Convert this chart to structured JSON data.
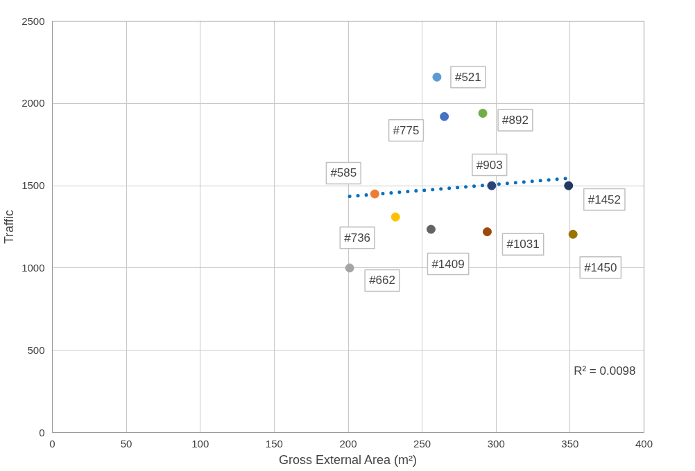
{
  "chart_data": {
    "type": "scatter",
    "xlabel": "Gross External Area (m²)",
    "ylabel": "Traffic",
    "xlim": [
      0,
      400
    ],
    "xticks": [
      0,
      50,
      100,
      150,
      200,
      250,
      300,
      350,
      400
    ],
    "ylim": [
      0,
      2500
    ],
    "yticks": [
      0,
      500,
      1000,
      1500,
      2000,
      2500
    ],
    "grid": true,
    "series": [
      {
        "marker": "circle",
        "x": [
          260,
          265,
          291,
          297,
          349,
          218,
          232,
          256,
          294,
          352,
          201
        ],
        "values": [
          2160,
          1920,
          1940,
          1500,
          1500,
          1450,
          1310,
          1235,
          1220,
          1205,
          1000
        ],
        "colors": [
          "#5b9bd5",
          "#4472c4",
          "#70ad47",
          "#264478",
          "#1f3864",
          "#ed7d31",
          "#ffc000",
          "#636363",
          "#9e480e",
          "#997300",
          "#a5a5a5"
        ]
      },
      {
        "type": "line",
        "x": [
          201,
          349
        ],
        "values": [
          1435,
          1545
        ],
        "color": "#0070c0",
        "line_style": "dotted"
      }
    ],
    "annotations": [
      {
        "text": "#521",
        "x": 260,
        "y": 2160
      },
      {
        "text": "#775",
        "x": 265,
        "y": 1920
      },
      {
        "text": "#892",
        "x": 291,
        "y": 1940
      },
      {
        "text": "#903",
        "x": 297,
        "y": 1500
      },
      {
        "text": "#1452",
        "x": 349,
        "y": 1500
      },
      {
        "text": "#585",
        "x": 218,
        "y": 1450
      },
      {
        "text": "#736",
        "x": 232,
        "y": 1310
      },
      {
        "text": "#1409",
        "x": 256,
        "y": 1235
      },
      {
        "text": "#1031",
        "x": 294,
        "y": 1220
      },
      {
        "text": "#1450",
        "x": 352,
        "y": 1205
      },
      {
        "text": "#662",
        "x": 201,
        "y": 1000
      },
      "R² = 0.0098"
    ]
  }
}
